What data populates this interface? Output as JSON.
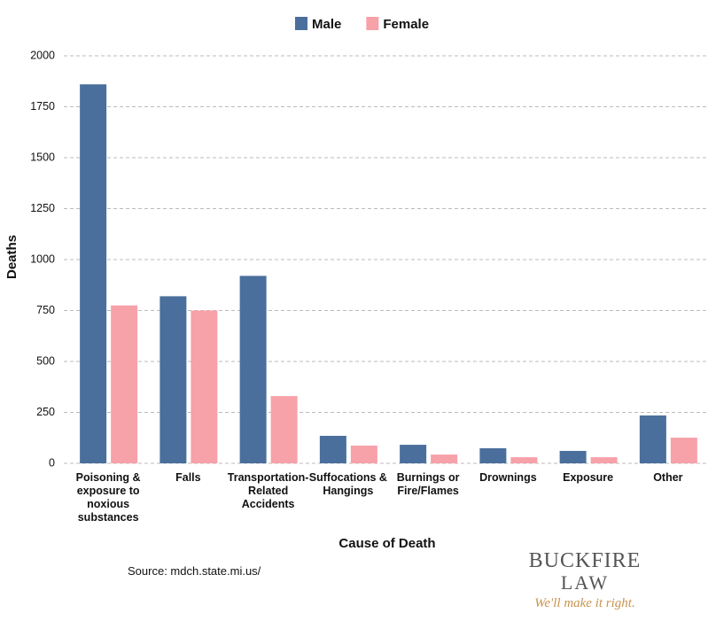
{
  "chart_data": {
    "type": "bar",
    "categories": [
      "Poisoning & exposure to noxious substances",
      "Falls",
      "Transportation-Related Accidents",
      "Suffocations & Hangings",
      "Burnings or Fire/Flames",
      "Drownings",
      "Exposure",
      "Other"
    ],
    "series": [
      {
        "name": "Male",
        "color": "#4a6f9c",
        "values": [
          1860,
          820,
          920,
          135,
          91,
          74,
          61,
          235
        ]
      },
      {
        "name": "Female",
        "color": "#f7a1a9",
        "values": [
          775,
          750,
          330,
          87,
          43,
          30,
          30,
          126
        ]
      }
    ],
    "ylim": [
      0,
      2000
    ],
    "yticks": [
      0,
      250,
      500,
      750,
      1000,
      1250,
      1500,
      1750,
      2000
    ],
    "y_label": "Deaths",
    "x_label": "Cause of Death",
    "grid": true,
    "legend": "top"
  },
  "source": "Source: mdch.state.mi.us/",
  "logo": {
    "name": "BUCKFIRE",
    "sub": "LAW",
    "tagline": "We'll make it right."
  }
}
